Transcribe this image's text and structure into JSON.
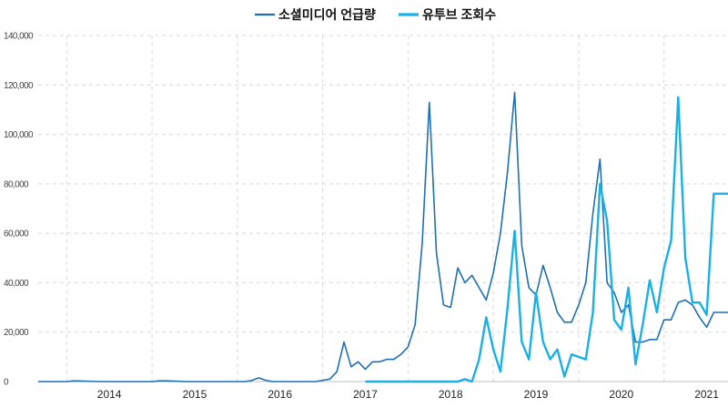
{
  "chart_data": {
    "type": "line",
    "title": "",
    "xlabel": "",
    "ylabel": "",
    "ylim": [
      0,
      140000
    ],
    "xlim": [
      "2013-09",
      "2021-10"
    ],
    "x_tick_labels": [
      "2014",
      "2015",
      "2016",
      "2017",
      "2018",
      "2019",
      "2020",
      "2021"
    ],
    "y_tick_labels": [
      "0",
      "20,000",
      "40,000",
      "60,000",
      "80,000",
      "100,000",
      "120,000",
      "140,000"
    ],
    "grid": true,
    "legend_position": "top-center",
    "series": [
      {
        "name": "소셜미디어 언급량",
        "color": "#1e6fb3",
        "x": [
          "2013-09",
          "2013-12",
          "2014-01",
          "2014-02",
          "2014-06",
          "2014-10",
          "2015-01",
          "2015-02",
          "2015-03",
          "2015-06",
          "2015-10",
          "2016-01",
          "2016-02",
          "2016-03",
          "2016-04",
          "2016-05",
          "2016-06",
          "2016-08",
          "2016-11",
          "2016-12",
          "2017-01",
          "2017-02",
          "2017-03",
          "2017-04",
          "2017-05",
          "2017-06",
          "2017-07",
          "2017-08",
          "2017-09",
          "2017-10",
          "2017-11",
          "2017-12",
          "2018-01",
          "2018-02",
          "2018-03",
          "2018-04",
          "2018-05",
          "2018-06",
          "2018-07",
          "2018-08",
          "2018-09",
          "2018-10",
          "2018-11",
          "2018-12",
          "2019-01",
          "2019-02",
          "2019-03",
          "2019-04",
          "2019-05",
          "2019-06",
          "2019-07",
          "2019-08",
          "2019-09",
          "2019-10",
          "2019-11",
          "2019-12",
          "2020-01",
          "2020-02",
          "2020-03",
          "2020-04",
          "2020-05",
          "2020-06",
          "2020-07",
          "2020-08",
          "2020-09",
          "2020-10",
          "2020-11",
          "2020-12",
          "2021-01",
          "2021-02",
          "2021-03",
          "2021-04",
          "2021-05",
          "2021-06",
          "2021-07",
          "2021-08",
          "2021-09",
          "2021-10"
        ],
        "values": [
          0,
          0,
          0,
          300,
          0,
          0,
          0,
          300,
          300,
          0,
          0,
          0,
          0,
          400,
          1500,
          500,
          0,
          0,
          0,
          0,
          500,
          1000,
          4000,
          16000,
          6000,
          8000,
          5000,
          8000,
          8000,
          9000,
          9000,
          11000,
          14000,
          23000,
          56000,
          113000,
          52000,
          31000,
          30000,
          46000,
          40000,
          43000,
          38000,
          33000,
          44000,
          60000,
          85000,
          117000,
          55000,
          38000,
          35000,
          47000,
          38000,
          28000,
          24000,
          24000,
          31000,
          40000,
          68000,
          90000,
          40000,
          36000,
          28000,
          31000,
          16000,
          16000,
          17000,
          17000,
          25000,
          25000,
          32000,
          33000,
          31000,
          26000,
          22000,
          28000,
          28000,
          28000
        ]
      },
      {
        "name": "유투브 조회수",
        "color": "#1ab0e5",
        "x": [
          "2017-07",
          "2018-01",
          "2018-06",
          "2018-07",
          "2018-08",
          "2018-09",
          "2018-10",
          "2018-11",
          "2018-12",
          "2019-01",
          "2019-02",
          "2019-03",
          "2019-04",
          "2019-05",
          "2019-06",
          "2019-07",
          "2019-08",
          "2019-09",
          "2019-10",
          "2019-11",
          "2019-12",
          "2020-01",
          "2020-02",
          "2020-03",
          "2020-04",
          "2020-05",
          "2020-06",
          "2020-07",
          "2020-08",
          "2020-09",
          "2020-10",
          "2020-11",
          "2020-12",
          "2021-01",
          "2021-02",
          "2021-03",
          "2021-04",
          "2021-05",
          "2021-06",
          "2021-07",
          "2021-08",
          "2021-09",
          "2021-10"
        ],
        "values": [
          0,
          0,
          0,
          0,
          0,
          1000,
          0,
          9000,
          26000,
          13000,
          4000,
          30000,
          61000,
          16000,
          9000,
          36000,
          16000,
          9000,
          13000,
          2000,
          11000,
          10000,
          9000,
          28000,
          80000,
          65000,
          25000,
          21000,
          38000,
          7000,
          23000,
          41000,
          28000,
          46000,
          57000,
          115000,
          50000,
          32000,
          32000,
          27000,
          76000,
          76000,
          76000
        ]
      }
    ]
  }
}
